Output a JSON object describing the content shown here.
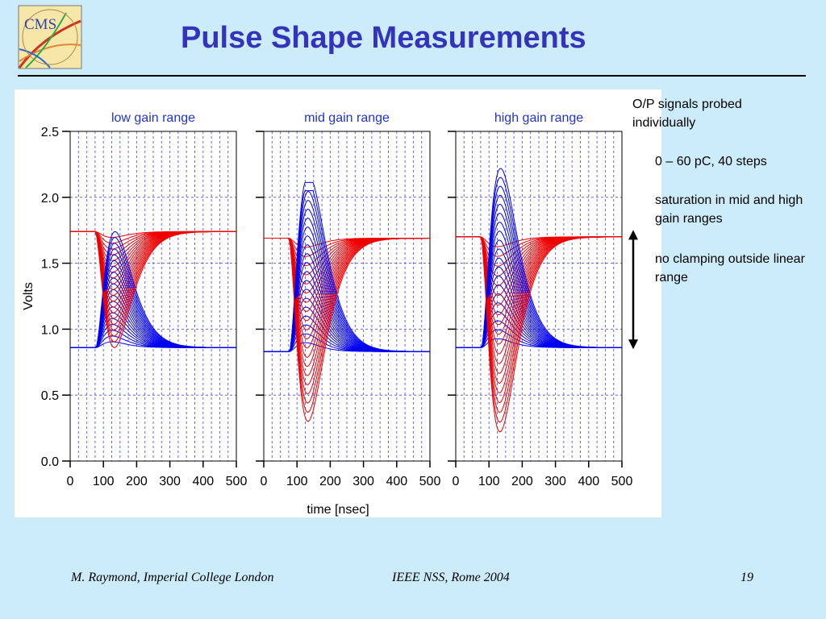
{
  "slide": {
    "title": "Pulse Shape Measurements",
    "logo_text": "CMS"
  },
  "notes": {
    "heading": "O/P signals probed individually",
    "items": [
      "0 – 60 pC, 40 steps",
      "saturation in mid and high gain ranges",
      "no clamping outside linear range"
    ]
  },
  "footer": {
    "author": "M. Raymond, Imperial College London",
    "conference": "IEEE NSS, Rome 2004",
    "page": "19"
  },
  "colors": {
    "title": "#3333bb",
    "panel_title": "#2233cc",
    "blue_trace": "#0000ee",
    "red_trace": "#ee0000",
    "grid": "#6666ee",
    "background": "#ccecfc"
  },
  "chart_data": {
    "type": "line",
    "ylabel": "Volts",
    "xlabel": "time [nsec]",
    "xlim": [
      0,
      500
    ],
    "ylim": [
      0,
      2.5
    ],
    "xticks": [
      0,
      100,
      200,
      300,
      400,
      500
    ],
    "yticks": [
      0.0,
      0.5,
      1.0,
      1.5,
      2.0,
      2.5
    ],
    "ytick_labels": [
      "0.0",
      "0.5",
      "1.0",
      "1.5",
      "2.0",
      "2.5"
    ],
    "grid": true,
    "steps": 40,
    "range_arrow_volts": [
      0.86,
      1.74
    ],
    "panels": [
      {
        "title": "low gain range",
        "red_baseline": 1.74,
        "red_min_peak": 0.86,
        "blue_baseline": 0.86,
        "blue_max_peak": 1.74,
        "onset_ns": 75,
        "peak_ns": 125,
        "saturation_high": null,
        "saturation_low": null
      },
      {
        "title": "mid gain range",
        "red_baseline": 1.69,
        "red_min_peak": 0.3,
        "blue_baseline": 0.83,
        "blue_max_peak": 2.18,
        "onset_ns": 75,
        "peak_ns": 125,
        "saturation_high": 2.05,
        "saturation_low": 0.75
      },
      {
        "title": "high gain range",
        "red_baseline": 1.7,
        "red_min_peak": 0.22,
        "blue_baseline": 0.86,
        "blue_max_peak": 2.22,
        "onset_ns": 75,
        "peak_ns": 125,
        "saturation_high": 2.22,
        "saturation_low": 0.65
      }
    ]
  }
}
